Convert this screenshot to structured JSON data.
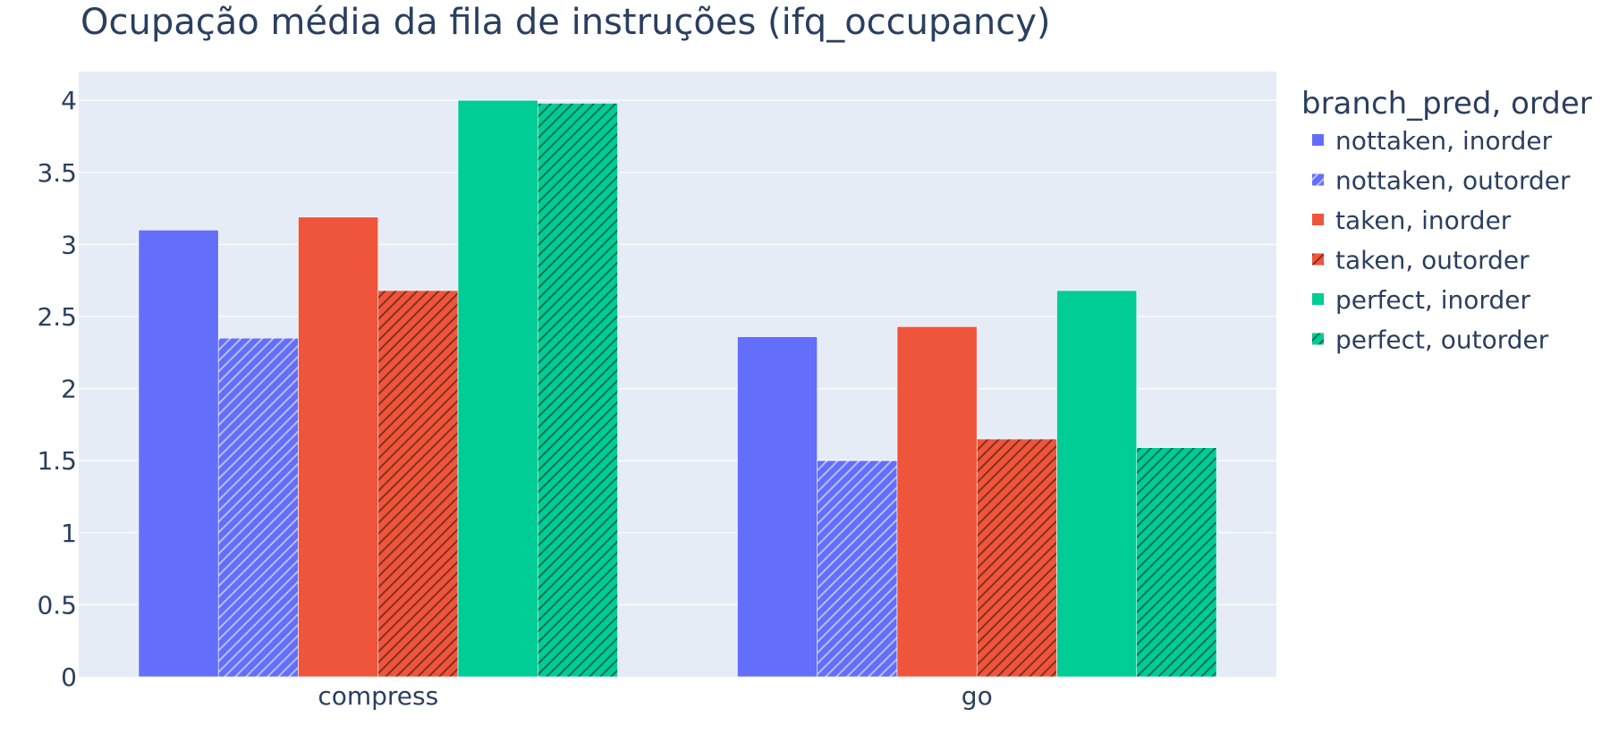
{
  "chart_data": {
    "type": "bar",
    "title": "Ocupação média da fila de instruções (ifq_occupancy)",
    "xlabel": "",
    "ylabel": "",
    "categories": [
      "compress",
      "go"
    ],
    "ylim": [
      0,
      4.2
    ],
    "yticks": [
      0,
      0.5,
      1,
      1.5,
      2,
      2.5,
      3,
      3.5,
      4
    ],
    "ytick_labels": [
      "0",
      "0.5",
      "1",
      "1.5",
      "2",
      "2.5",
      "3",
      "3.5",
      "4"
    ],
    "grid": true,
    "legend": {
      "title": "branch_pred, order",
      "position": "right"
    },
    "series": [
      {
        "name": "nottaken, inorder",
        "color": "#636efa",
        "pattern": "solid",
        "values": [
          3.1,
          2.36
        ]
      },
      {
        "name": "nottaken, outorder",
        "color": "#636efa",
        "pattern": "hatch",
        "values": [
          2.35,
          1.5
        ]
      },
      {
        "name": "taken, inorder",
        "color": "#ef553b",
        "pattern": "solid",
        "values": [
          3.19,
          2.43
        ]
      },
      {
        "name": "taken, outorder",
        "color": "#ef553b",
        "pattern": "hatch",
        "values": [
          2.68,
          1.65
        ]
      },
      {
        "name": "perfect, inorder",
        "color": "#00cc96",
        "pattern": "solid",
        "values": [
          4.0,
          2.68
        ]
      },
      {
        "name": "perfect, outorder",
        "color": "#00cc96",
        "pattern": "hatch",
        "values": [
          3.98,
          1.59
        ]
      }
    ],
    "colors": {
      "plot_background": "#e5ecf6",
      "grid": "#ffffff",
      "text": "#2a3f5f"
    }
  }
}
